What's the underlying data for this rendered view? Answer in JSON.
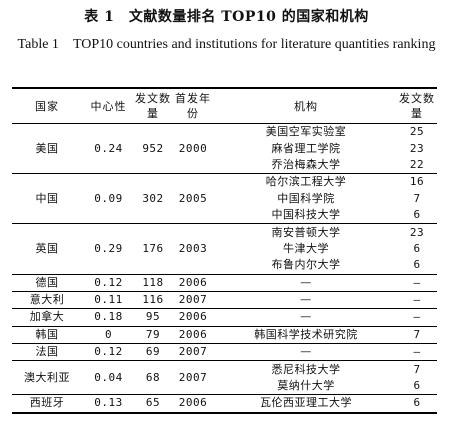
{
  "caption": {
    "zh": "表 1　文献数量排名 TOP10 的国家和机构",
    "en_label": "Table 1",
    "en_text": "TOP10 countries and institutions for literature quantities ranking"
  },
  "headers": {
    "country": "国家",
    "centrality": "中心性",
    "pubs": "发文数量",
    "first_year": "首发年份",
    "institution": "机构",
    "inst_pubs": "发文数量"
  },
  "rows": [
    {
      "country": "美国",
      "centrality": "0.24",
      "pubs": "952",
      "first_year": "2000",
      "institutions": [
        {
          "name": "美国空军实验室",
          "count": "25"
        },
        {
          "name": "麻省理工学院",
          "count": "23"
        },
        {
          "name": "乔治梅森大学",
          "count": "22"
        }
      ]
    },
    {
      "country": "中国",
      "centrality": "0.09",
      "pubs": "302",
      "first_year": "2005",
      "institutions": [
        {
          "name": "哈尔滨工程大学",
          "count": "16"
        },
        {
          "name": "中国科学院",
          "count": "7"
        },
        {
          "name": "中国科技大学",
          "count": "6"
        }
      ]
    },
    {
      "country": "英国",
      "centrality": "0.29",
      "pubs": "176",
      "first_year": "2003",
      "institutions": [
        {
          "name": "南安普顿大学",
          "count": "23"
        },
        {
          "name": "牛津大学",
          "count": "6"
        },
        {
          "name": "布鲁内尔大学",
          "count": "6"
        }
      ]
    },
    {
      "country": "德国",
      "centrality": "0.12",
      "pubs": "118",
      "first_year": "2006",
      "institutions": [
        {
          "name": "—",
          "count": "—"
        }
      ]
    },
    {
      "country": "意大利",
      "centrality": "0.11",
      "pubs": "116",
      "first_year": "2007",
      "institutions": [
        {
          "name": "—",
          "count": "—"
        }
      ]
    },
    {
      "country": "加拿大",
      "centrality": "0.18",
      "pubs": "95",
      "first_year": "2006",
      "institutions": [
        {
          "name": "—",
          "count": "—"
        }
      ]
    },
    {
      "country": "韩国",
      "centrality": "0",
      "pubs": "79",
      "first_year": "2006",
      "institutions": [
        {
          "name": "韩国科学技术研究院",
          "count": "7"
        }
      ]
    },
    {
      "country": "法国",
      "centrality": "0.12",
      "pubs": "69",
      "first_year": "2007",
      "institutions": [
        {
          "name": "—",
          "count": "—"
        }
      ]
    },
    {
      "country": "澳大利亚",
      "centrality": "0.04",
      "pubs": "68",
      "first_year": "2007",
      "institutions": [
        {
          "name": "悉尼科技大学",
          "count": "7"
        },
        {
          "name": "莫纳什大学",
          "count": "6"
        }
      ]
    },
    {
      "country": "西班牙",
      "centrality": "0.13",
      "pubs": "65",
      "first_year": "2006",
      "institutions": [
        {
          "name": "瓦伦西亚理工大学",
          "count": "6"
        }
      ]
    }
  ]
}
